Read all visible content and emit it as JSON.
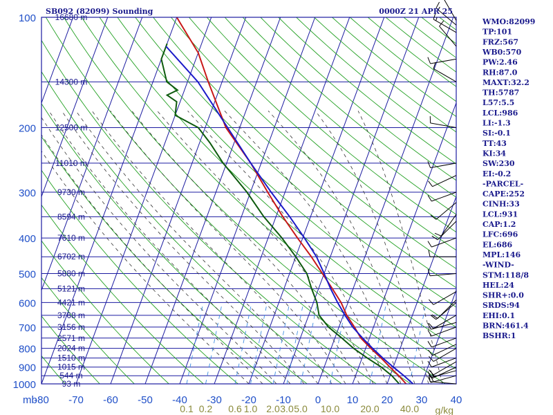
{
  "header": {
    "title": "SB092 (82099) Sounding",
    "time": "0000Z 21 APR 25"
  },
  "chart_data": {
    "type": "line",
    "pressure_levels": [
      100,
      200,
      300,
      400,
      500,
      600,
      700,
      800,
      900,
      1000
    ],
    "pressure_tick_labels": [
      "100",
      "200",
      "300",
      "400",
      "500",
      "600",
      "700",
      "800",
      "900",
      "1000"
    ],
    "pressure_unit_label": "mb",
    "temp_ticks": [
      -80,
      -70,
      -60,
      -50,
      -40,
      -30,
      -20,
      -10,
      0,
      10,
      20,
      30,
      40
    ],
    "temp_tick_labels": [
      "-80",
      "-70",
      "-60",
      "-50",
      "-40",
      "-30",
      "-20",
      "-10",
      "0",
      "10",
      "20",
      "30",
      "40"
    ],
    "xlim": [
      -80,
      40
    ],
    "ylim": [
      1000,
      100
    ],
    "mixing_ratio_ticks": [
      {
        "label": "0.1",
        "t": -38
      },
      {
        "label": "0.2",
        "t": -32.5
      },
      {
        "label": "0.6",
        "t": -24
      },
      {
        "label": "1.0",
        "t": -19.5
      },
      {
        "label": "2.0",
        "t": -13
      },
      {
        "label": "3.0",
        "t": -9
      },
      {
        "label": "5.0",
        "t": -5
      },
      {
        "label": "10.0",
        "t": 3.5
      },
      {
        "label": "20.0",
        "t": 15
      },
      {
        "label": "40.0",
        "t": 26.5
      }
    ],
    "mixing_ratio_unit": "g/kg",
    "height_labels": [
      {
        "label": "16680 m",
        "p": 100
      },
      {
        "label": "14300 m",
        "p": 150
      },
      {
        "label": "12500 m",
        "p": 200
      },
      {
        "label": "11010 m",
        "p": 250
      },
      {
        "label": "9730 m",
        "p": 300
      },
      {
        "label": "8594 m",
        "p": 350
      },
      {
        "label": "7610 m",
        "p": 400
      },
      {
        "label": "6702 m",
        "p": 450
      },
      {
        "label": "5880 m",
        "p": 500
      },
      {
        "label": "5121 m",
        "p": 550
      },
      {
        "label": "4421 m",
        "p": 600
      },
      {
        "label": "3768 m",
        "p": 650
      },
      {
        "label": "3156 m",
        "p": 700
      },
      {
        "label": "2571 m",
        "p": 750
      },
      {
        "label": "2024 m",
        "p": 800
      },
      {
        "label": "1510 m",
        "p": 850
      },
      {
        "label": "1015 m",
        "p": 900
      },
      {
        "label": "544 m",
        "p": 950
      },
      {
        "label": "93 m",
        "p": 1000
      }
    ],
    "series": [
      {
        "name": "Temperature",
        "color": "#c81818",
        "points": [
          [
            1000,
            25.5
          ],
          [
            950,
            22.5
          ],
          [
            900,
            19
          ],
          [
            850,
            15.5
          ],
          [
            800,
            11.5
          ],
          [
            750,
            7.5
          ],
          [
            700,
            4.5
          ],
          [
            650,
            1
          ],
          [
            600,
            -2
          ],
          [
            550,
            -6
          ],
          [
            500,
            -10.5
          ],
          [
            450,
            -15.5
          ],
          [
            400,
            -21.5
          ],
          [
            350,
            -28
          ],
          [
            300,
            -35
          ],
          [
            250,
            -43
          ],
          [
            200,
            -54
          ],
          [
            150,
            -64
          ],
          [
            125,
            -70
          ],
          [
            100,
            -80
          ]
        ]
      },
      {
        "name": "Dewpoint",
        "color": "#0d5a0d",
        "points": [
          [
            1000,
            23.5
          ],
          [
            950,
            20.5
          ],
          [
            900,
            16.5
          ],
          [
            850,
            11.5
          ],
          [
            800,
            6.5
          ],
          [
            750,
            2
          ],
          [
            700,
            -3
          ],
          [
            650,
            -7
          ],
          [
            600,
            -9
          ],
          [
            550,
            -12
          ],
          [
            500,
            -15
          ],
          [
            450,
            -20
          ],
          [
            400,
            -26
          ],
          [
            350,
            -33.5
          ],
          [
            300,
            -41
          ],
          [
            250,
            -51
          ],
          [
            220,
            -57
          ],
          [
            200,
            -62
          ],
          [
            185,
            -70
          ],
          [
            170,
            -71
          ],
          [
            163,
            -74.5
          ],
          [
            158,
            -72
          ],
          [
            150,
            -76
          ],
          [
            130,
            -80
          ],
          [
            118,
            -80
          ]
        ]
      },
      {
        "name": "Parcel",
        "color": "#1a1ac8",
        "points": [
          [
            1000,
            27.5
          ],
          [
            950,
            24
          ],
          [
            900,
            20
          ],
          [
            850,
            16
          ],
          [
            800,
            12
          ],
          [
            750,
            8
          ],
          [
            700,
            4
          ],
          [
            650,
            0.5
          ],
          [
            600,
            -3
          ],
          [
            550,
            -6.5
          ],
          [
            500,
            -10
          ],
          [
            450,
            -14
          ],
          [
            400,
            -19.5
          ],
          [
            350,
            -26
          ],
          [
            300,
            -34
          ],
          [
            250,
            -43
          ],
          [
            200,
            -53.5
          ],
          [
            150,
            -67
          ],
          [
            120,
            -80
          ]
        ]
      }
    ],
    "winds": [
      {
        "p": 1000,
        "dir": 275,
        "spd": 10
      },
      {
        "p": 950,
        "dir": 255,
        "spd": 20
      },
      {
        "p": 920,
        "dir": 255,
        "spd": 20
      },
      {
        "p": 900,
        "dir": 245,
        "spd": 15
      },
      {
        "p": 870,
        "dir": 240,
        "spd": 10
      },
      {
        "p": 850,
        "dir": 250,
        "spd": 10
      },
      {
        "p": 800,
        "dir": 240,
        "spd": 10
      },
      {
        "p": 780,
        "dir": 245,
        "spd": 10
      },
      {
        "p": 750,
        "dir": 250,
        "spd": 10
      },
      {
        "p": 700,
        "dir": 250,
        "spd": 10
      },
      {
        "p": 680,
        "dir": 255,
        "spd": 10
      },
      {
        "p": 650,
        "dir": 240,
        "spd": 10
      },
      {
        "p": 600,
        "dir": 230,
        "spd": 10
      },
      {
        "p": 590,
        "dir": 225,
        "spd": 10
      },
      {
        "p": 560,
        "dir": 240,
        "spd": 10
      },
      {
        "p": 500,
        "dir": 265,
        "spd": 10
      },
      {
        "p": 450,
        "dir": 270,
        "spd": 10
      },
      {
        "p": 400,
        "dir": 250,
        "spd": 10
      },
      {
        "p": 360,
        "dir": 225,
        "spd": 10
      },
      {
        "p": 345,
        "dir": 215,
        "spd": 10
      },
      {
        "p": 320,
        "dir": 230,
        "spd": 10
      },
      {
        "p": 300,
        "dir": 250,
        "spd": 10
      },
      {
        "p": 270,
        "dir": 245,
        "spd": 10
      },
      {
        "p": 250,
        "dir": 260,
        "spd": 10
      },
      {
        "p": 200,
        "dir": 280,
        "spd": 10
      },
      {
        "p": 150,
        "dir": 300,
        "spd": 10
      },
      {
        "p": 130,
        "dir": 260,
        "spd": 10
      },
      {
        "p": 120,
        "dir": 320,
        "spd": 10
      },
      {
        "p": 110,
        "dir": 300,
        "spd": 15
      },
      {
        "p": 105,
        "dir": 310,
        "spd": 15
      },
      {
        "p": 102,
        "dir": 330,
        "spd": 10
      }
    ]
  },
  "indices": [
    "WMO:82099",
    "TP:101",
    "FRZ:567",
    "WB0:570",
    "PW:2.46",
    "RH:87.0",
    "MAXT:32.2",
    "TH:5787",
    "L57:5.5",
    "LCL:986",
    "LI:-1.3",
    "SI:-0.1",
    "TT:43",
    "KI:34",
    "SW:230",
    "EI:-0.2",
    "-PARCEL-",
    "CAPE:252",
    "CINH:33",
    "LCL:931",
    "CAP:1.2",
    "LFC:696",
    "EL:686",
    "MPL:146",
    "-WIND-",
    "STM:118/8",
    "HEL:24",
    "SHR+:0.0",
    "SRDS:94",
    "EHI:0.1",
    "BRN:461.4",
    "BSHR:1"
  ],
  "colors": {
    "grid": "#1a1aa0",
    "dry_adiabat": "#22a022",
    "moist_adiabat": "#333333",
    "mixing_ratio": "#3c8ce0",
    "text": "#1a1a8c"
  }
}
